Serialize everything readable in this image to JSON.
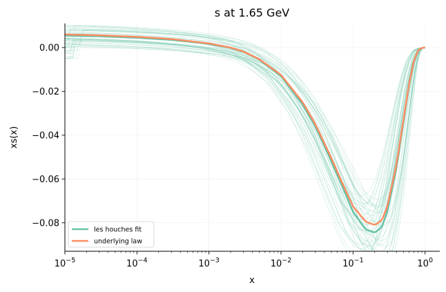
{
  "chart_data": {
    "type": "line",
    "title": "s at 1.65 GeV",
    "xlabel": "x",
    "ylabel": "xs(x)",
    "xscale": "log",
    "xlim": [
      1e-05,
      1.6
    ],
    "ylim": [
      -0.093,
      0.011
    ],
    "x_ticks": [
      {
        "value": 1e-05,
        "base": "10",
        "exp": "−5"
      },
      {
        "value": 0.0001,
        "base": "10",
        "exp": "−4"
      },
      {
        "value": 0.001,
        "base": "10",
        "exp": "−3"
      },
      {
        "value": 0.01,
        "base": "10",
        "exp": "−2"
      },
      {
        "value": 0.1,
        "base": "10",
        "exp": "−1"
      },
      {
        "value": 1,
        "base": "10",
        "exp": "0"
      }
    ],
    "y_ticks": [
      {
        "value": 0.0,
        "label": "0.00"
      },
      {
        "value": -0.02,
        "label": "−0.02"
      },
      {
        "value": -0.04,
        "label": "−0.04"
      },
      {
        "value": -0.06,
        "label": "−0.06"
      },
      {
        "value": -0.08,
        "label": "−0.08"
      }
    ],
    "grid": true,
    "legend_position": "lower-left",
    "colors": {
      "fit": "#66c2a5",
      "law": "#fc8d62"
    },
    "series": [
      {
        "name": "les houches fit",
        "color": "#66c2a5",
        "x": [
          1e-05,
          3e-05,
          0.0001,
          0.0003,
          0.001,
          0.002,
          0.003,
          0.005,
          0.01,
          0.02,
          0.03,
          0.05,
          0.07,
          0.1,
          0.15,
          0.2,
          0.25,
          0.3,
          0.4,
          0.5,
          0.6,
          0.7,
          0.8,
          0.9,
          1.0
        ],
        "y": [
          0.0055,
          0.0052,
          0.0045,
          0.0035,
          0.0017,
          -0.0002,
          -0.002,
          -0.0055,
          -0.013,
          -0.026,
          -0.036,
          -0.052,
          -0.063,
          -0.075,
          -0.083,
          -0.0845,
          -0.082,
          -0.075,
          -0.055,
          -0.034,
          -0.017,
          -0.0065,
          -0.0015,
          -0.0002,
          0.0
        ]
      },
      {
        "name": "underlying law",
        "color": "#fc8d62",
        "x": [
          1e-05,
          3e-05,
          0.0001,
          0.0003,
          0.001,
          0.002,
          0.003,
          0.005,
          0.01,
          0.02,
          0.03,
          0.05,
          0.07,
          0.1,
          0.15,
          0.2,
          0.25,
          0.3,
          0.4,
          0.5,
          0.6,
          0.7,
          0.8,
          0.9,
          1.0
        ],
        "y": [
          0.006,
          0.0056,
          0.0049,
          0.0039,
          0.0019,
          0.0,
          -0.0018,
          -0.0053,
          -0.0125,
          -0.025,
          -0.035,
          -0.0505,
          -0.0615,
          -0.0725,
          -0.0795,
          -0.081,
          -0.079,
          -0.0725,
          -0.0535,
          -0.033,
          -0.0165,
          -0.006,
          -0.0013,
          -0.0001,
          0.0
        ]
      }
    ]
  }
}
